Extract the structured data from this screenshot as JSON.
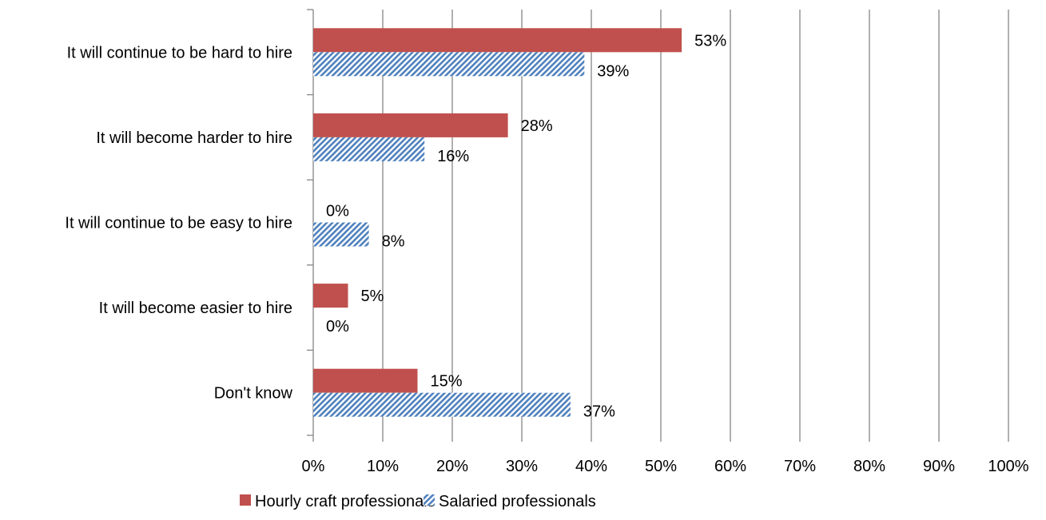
{
  "chart_data": {
    "type": "bar",
    "orientation": "horizontal",
    "categories": [
      "It will continue to be hard to hire",
      "It will become harder to hire",
      "It will continue to be easy to hire",
      "It will become easier to hire",
      "Don't know"
    ],
    "series": [
      {
        "name": "Hourly craft professionals",
        "values": [
          53,
          28,
          0,
          5,
          15
        ],
        "data_labels": [
          "53%",
          "28%",
          "0%",
          "5%",
          "15%"
        ],
        "color": "#c0504d",
        "fill": "solid"
      },
      {
        "name": "Salaried professionals",
        "values": [
          39,
          16,
          8,
          0,
          37
        ],
        "data_labels": [
          "39%",
          "16%",
          "8%",
          "0%",
          "37%"
        ],
        "color": "#4f81bd",
        "fill": "diagonal-hatch"
      }
    ],
    "xlim": [
      0,
      100
    ],
    "x_ticks": [
      0,
      10,
      20,
      30,
      40,
      50,
      60,
      70,
      80,
      90,
      100
    ],
    "x_tick_labels": [
      "0%",
      "10%",
      "20%",
      "30%",
      "40%",
      "50%",
      "60%",
      "70%",
      "80%",
      "90%",
      "100%"
    ],
    "grid": "vertical-major",
    "gridline_color": "#868686",
    "legend_position": "bottom",
    "title": "",
    "xlabel": "",
    "ylabel": ""
  }
}
